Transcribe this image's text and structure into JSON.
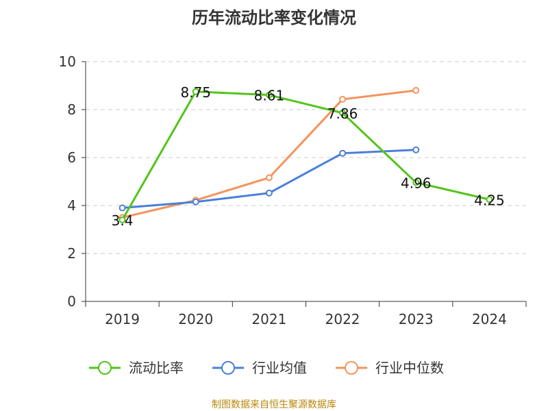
{
  "source": "制图数据来自恒生聚源数据库",
  "chart_data": {
    "type": "line",
    "title": "历年流动比率变化情况",
    "categories": [
      "2019",
      "2020",
      "2021",
      "2022",
      "2023",
      "2024"
    ],
    "ylim": [
      0,
      10
    ],
    "yticks": [
      0,
      2,
      4,
      6,
      8,
      10
    ],
    "grid": true,
    "legend_position": "bottom",
    "series": [
      {
        "name": "流动比率",
        "color": "#52c41a",
        "values": [
          3.4,
          8.75,
          8.61,
          7.86,
          4.96,
          4.25
        ],
        "labels": [
          "3.4",
          "8.75",
          "8.61",
          "7.86",
          "4.96",
          "4.25"
        ]
      },
      {
        "name": "行业均值",
        "color": "#4a7fd9",
        "values": [
          3.9,
          4.15,
          4.52,
          6.18,
          6.32,
          null
        ],
        "labels": []
      },
      {
        "name": "行业中位数",
        "color": "#f5935b",
        "values": [
          3.5,
          4.22,
          5.16,
          8.43,
          8.8,
          null
        ],
        "labels": []
      }
    ]
  }
}
